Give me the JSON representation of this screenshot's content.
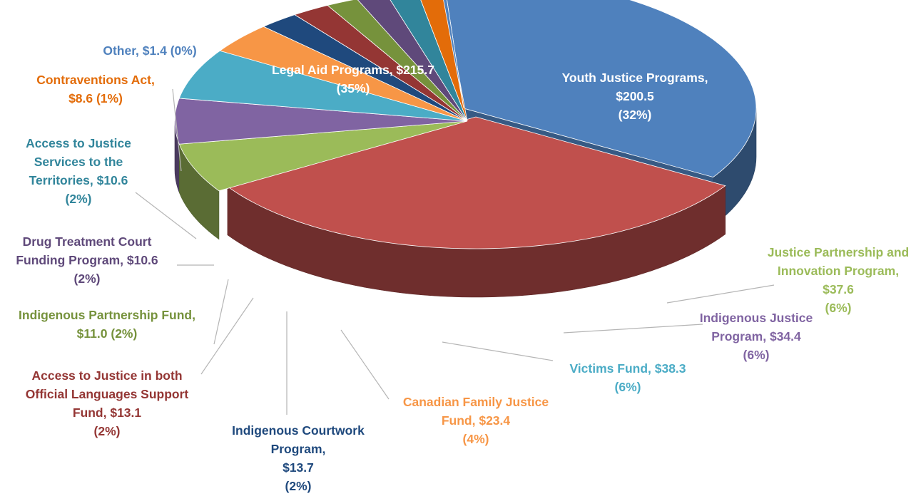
{
  "chart_data": {
    "type": "pie",
    "style": "3d-exploded",
    "title": "",
    "unit_prefix": "$",
    "slices": [
      {
        "name": "Legal Aid Programs",
        "value": 215.7,
        "value_label": "$215.7",
        "percent_label": "(35%)",
        "color": "#4F81BD"
      },
      {
        "name": "Youth Justice Programs",
        "value": 200.5,
        "value_label": "$200.5",
        "percent_label": "(32%)",
        "color": "#C0504D"
      },
      {
        "name": "Justice Partnership and Innovation Program",
        "value": 37.6,
        "value_label": "$37.6",
        "percent_label": "(6%)",
        "color": "#9BBB59"
      },
      {
        "name": "Indigenous Justice Program",
        "value": 34.4,
        "value_label": "$34.4",
        "percent_label": "(6%)",
        "color": "#8064A2"
      },
      {
        "name": "Victims Fund",
        "value": 38.3,
        "value_label": "$38.3",
        "percent_label": "(6%)",
        "color": "#4BACC6"
      },
      {
        "name": "Canadian Family Justice Fund",
        "value": 23.4,
        "value_label": "$23.4",
        "percent_label": "(4%)",
        "color": "#F79646"
      },
      {
        "name": "Indigenous Courtwork Program",
        "value": 13.7,
        "value_label": "$13.7",
        "percent_label": "(2%)",
        "color": "#1F497D"
      },
      {
        "name": "Access to Justice in both Official Languages Support Fund",
        "value": 13.1,
        "value_label": "$13.1",
        "percent_label": "(2%)",
        "color": "#943634"
      },
      {
        "name": "Indigenous Partnership Fund",
        "value": 11.0,
        "value_label": "$11.0",
        "percent_label": "(2%)",
        "color": "#76923C"
      },
      {
        "name": "Drug Treatment Court Funding Program",
        "value": 10.6,
        "value_label": "$10.6",
        "percent_label": "(2%)",
        "color": "#5F497A"
      },
      {
        "name": "Access to Justice Services to the Territories",
        "value": 10.6,
        "value_label": "$10.6",
        "percent_label": "(2%)",
        "color": "#31859B"
      },
      {
        "name": "Contraventions Act",
        "value": 8.6,
        "value_label": "$8.6",
        "percent_label": "(1%)",
        "color": "#E36C09"
      },
      {
        "name": "Other",
        "value": 1.4,
        "value_label": "$1.4",
        "percent_label": "(0%)",
        "color": "#4F81BD"
      }
    ],
    "labels": [
      {
        "lines": [
          "Legal Aid Programs,  $215.7",
          "(35%)"
        ],
        "color": "#FFFFFF"
      },
      {
        "lines": [
          "Youth Justice Programs,",
          "$200.5",
          "(32%)"
        ],
        "color": "#FFFFFF"
      },
      {
        "lines": [
          "Justice Partnership and",
          "Innovation Program,",
          "$37.6",
          "(6%)"
        ],
        "color": "#9BBB59"
      },
      {
        "lines": [
          "Indigenous Justice",
          "Program,  $34.4",
          "(6%)"
        ],
        "color": "#8064A2"
      },
      {
        "lines": [
          "Victims Fund,  $38.3",
          "(6%)"
        ],
        "color": "#4BACC6"
      },
      {
        "lines": [
          "Canadian Family Justice",
          "Fund,  $23.4",
          "(4%)"
        ],
        "color": "#F79646"
      },
      {
        "lines": [
          "Indigenous Courtwork",
          "Program,",
          "$13.7",
          "(2%)"
        ],
        "color": "#1F497D"
      },
      {
        "lines": [
          "Access to Justice in both",
          "Official Languages Support",
          "Fund,  $13.1",
          "(2%)"
        ],
        "color": "#943634"
      },
      {
        "lines": [
          "Indigenous Partnership Fund,",
          "$11.0  (2%)"
        ],
        "color": "#76923C"
      },
      {
        "lines": [
          "Drug Treatment Court",
          "Funding Program,  $10.6",
          "(2%)"
        ],
        "color": "#5F497A"
      },
      {
        "lines": [
          "Access to Justice",
          "Services to the",
          "Territories,  $10.6",
          "(2%)"
        ],
        "color": "#31859B"
      },
      {
        "lines": [
          "Contraventions Act,",
          "$8.6  (1%)"
        ],
        "color": "#E36C09"
      },
      {
        "lines": [
          "Other,  $1.4  (0%)"
        ],
        "color": "#4F81BD"
      }
    ],
    "legend": "none"
  }
}
